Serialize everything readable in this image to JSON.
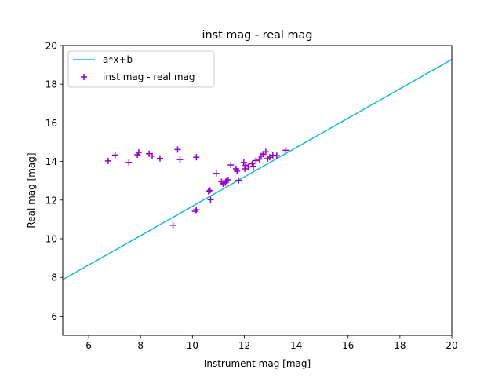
{
  "chart_data": {
    "type": "scatter",
    "title": "inst mag - real mag",
    "xlabel": "Instrument mag [mag]",
    "ylabel": "Real mag [mag]",
    "xlim": [
      5,
      20
    ],
    "ylim": [
      5,
      20
    ],
    "xticks": [
      6,
      8,
      10,
      12,
      14,
      16,
      18,
      20
    ],
    "yticks": [
      6,
      8,
      10,
      12,
      14,
      16,
      18,
      20
    ],
    "grid": false,
    "legend_position": "top-left",
    "series": [
      {
        "name": "a*x+b",
        "kind": "line",
        "color": "#17becf",
        "x": [
          5,
          20
        ],
        "y": [
          7.88,
          19.28
        ]
      },
      {
        "name": "inst mag - real mag",
        "kind": "scatter",
        "marker": "+",
        "color": "#9400d3",
        "points": [
          [
            6.75,
            14.03
          ],
          [
            7.02,
            14.33
          ],
          [
            7.55,
            13.95
          ],
          [
            7.88,
            14.35
          ],
          [
            7.93,
            14.47
          ],
          [
            8.33,
            14.4
          ],
          [
            8.45,
            14.28
          ],
          [
            8.75,
            14.16
          ],
          [
            9.25,
            10.7
          ],
          [
            9.43,
            14.62
          ],
          [
            9.52,
            14.1
          ],
          [
            10.1,
            11.42
          ],
          [
            10.15,
            11.5
          ],
          [
            10.15,
            14.22
          ],
          [
            10.62,
            12.45
          ],
          [
            10.68,
            12.5
          ],
          [
            10.7,
            12.02
          ],
          [
            10.92,
            13.38
          ],
          [
            11.12,
            12.95
          ],
          [
            11.18,
            12.85
          ],
          [
            11.27,
            12.9
          ],
          [
            11.3,
            13.0
          ],
          [
            11.38,
            13.05
          ],
          [
            11.48,
            13.82
          ],
          [
            11.68,
            13.62
          ],
          [
            11.72,
            13.5
          ],
          [
            11.78,
            13.02
          ],
          [
            11.98,
            13.95
          ],
          [
            12.02,
            13.62
          ],
          [
            12.05,
            13.8
          ],
          [
            12.15,
            13.72
          ],
          [
            12.3,
            13.88
          ],
          [
            12.35,
            13.75
          ],
          [
            12.45,
            14.05
          ],
          [
            12.58,
            14.12
          ],
          [
            12.65,
            14.28
          ],
          [
            12.72,
            14.38
          ],
          [
            12.83,
            14.5
          ],
          [
            12.9,
            14.15
          ],
          [
            12.98,
            14.22
          ],
          [
            13.1,
            14.32
          ],
          [
            13.25,
            14.3
          ],
          [
            13.6,
            14.58
          ]
        ]
      }
    ]
  }
}
